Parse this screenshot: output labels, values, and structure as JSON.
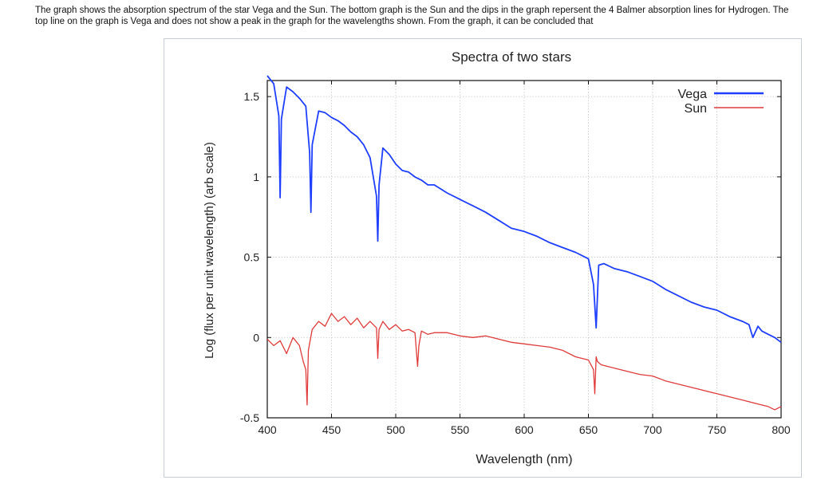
{
  "question": {
    "text": "The graph shows the absorption spectrum of the star Vega and the Sun. The bottom graph is the Sun and the dips in the graph repersent the 4 Balmer absorption lines for Hydrogen. The top line on the graph is Vega and does not show a peak in the graph for the wavelengths shown. From the graph, it can be concluded that"
  },
  "chart_data": {
    "type": "line",
    "title": "Spectra of two stars",
    "xlabel": "Wavelength (nm)",
    "ylabel": "Log (flux per unit wavelength) (arb scale)",
    "xlim": [
      400,
      800
    ],
    "ylim": [
      -0.5,
      1.6
    ],
    "xticks": [
      400,
      450,
      500,
      550,
      600,
      650,
      700,
      750,
      800
    ],
    "xtick_labels": [
      "400",
      "450",
      "500",
      "550",
      "600",
      "650",
      "700",
      "750",
      "800"
    ],
    "yticks": [
      -0.5,
      0,
      0.5,
      1,
      1.5
    ],
    "ytick_labels": [
      "-0.5",
      "0",
      "0.5",
      "1",
      "1.5"
    ],
    "grid": true,
    "legend_position": "top-right",
    "series": [
      {
        "name": "Vega",
        "color": "#1f3fff",
        "x": [
          400,
          405,
          409,
          410,
          411,
          415,
          420,
          425,
          430,
          433,
          434,
          435,
          440,
          445,
          450,
          455,
          460,
          465,
          470,
          475,
          480,
          485,
          486,
          487,
          490,
          495,
          500,
          505,
          510,
          515,
          520,
          525,
          530,
          540,
          550,
          560,
          570,
          580,
          590,
          600,
          610,
          620,
          630,
          640,
          650,
          654,
          656,
          658,
          662,
          670,
          680,
          690,
          700,
          710,
          720,
          730,
          740,
          750,
          760,
          770,
          775,
          778,
          782,
          785,
          790,
          795,
          800
        ],
        "y": [
          1.63,
          1.58,
          1.38,
          0.87,
          1.36,
          1.56,
          1.53,
          1.49,
          1.44,
          1.15,
          0.78,
          1.2,
          1.41,
          1.4,
          1.37,
          1.35,
          1.32,
          1.28,
          1.25,
          1.2,
          1.12,
          0.88,
          0.6,
          0.95,
          1.18,
          1.14,
          1.08,
          1.04,
          1.03,
          1.0,
          0.98,
          0.95,
          0.95,
          0.9,
          0.86,
          0.82,
          0.78,
          0.73,
          0.68,
          0.66,
          0.63,
          0.59,
          0.56,
          0.53,
          0.49,
          0.33,
          0.06,
          0.45,
          0.46,
          0.43,
          0.41,
          0.38,
          0.35,
          0.3,
          0.26,
          0.22,
          0.19,
          0.17,
          0.13,
          0.1,
          0.08,
          0.0,
          0.07,
          0.04,
          0.02,
          0.0,
          -0.03
        ]
      },
      {
        "name": "Sun",
        "color": "#e03a3a",
        "x": [
          400,
          405,
          410,
          415,
          420,
          425,
          428,
          430,
          431,
          432,
          435,
          440,
          445,
          450,
          455,
          460,
          465,
          470,
          475,
          480,
          485,
          486,
          487,
          490,
          495,
          500,
          505,
          510,
          515,
          517,
          518,
          520,
          525,
          530,
          540,
          550,
          560,
          570,
          580,
          590,
          600,
          610,
          620,
          630,
          640,
          650,
          654,
          655,
          656,
          657,
          660,
          670,
          680,
          690,
          700,
          710,
          720,
          730,
          740,
          750,
          760,
          770,
          780,
          790,
          795,
          800
        ],
        "y": [
          -0.01,
          -0.05,
          -0.02,
          -0.1,
          0.0,
          -0.05,
          -0.15,
          -0.2,
          -0.42,
          -0.08,
          0.05,
          0.1,
          0.07,
          0.15,
          0.1,
          0.13,
          0.08,
          0.12,
          0.06,
          0.1,
          0.06,
          -0.13,
          0.05,
          0.1,
          0.05,
          0.08,
          0.04,
          0.05,
          0.03,
          -0.18,
          -0.05,
          0.04,
          0.02,
          0.03,
          0.03,
          0.01,
          0.0,
          0.01,
          -0.01,
          -0.03,
          -0.04,
          -0.05,
          -0.06,
          -0.08,
          -0.12,
          -0.14,
          -0.2,
          -0.35,
          -0.12,
          -0.15,
          -0.17,
          -0.19,
          -0.21,
          -0.23,
          -0.24,
          -0.27,
          -0.29,
          -0.31,
          -0.33,
          -0.35,
          -0.37,
          -0.39,
          -0.41,
          -0.43,
          -0.45,
          -0.43
        ]
      }
    ]
  }
}
